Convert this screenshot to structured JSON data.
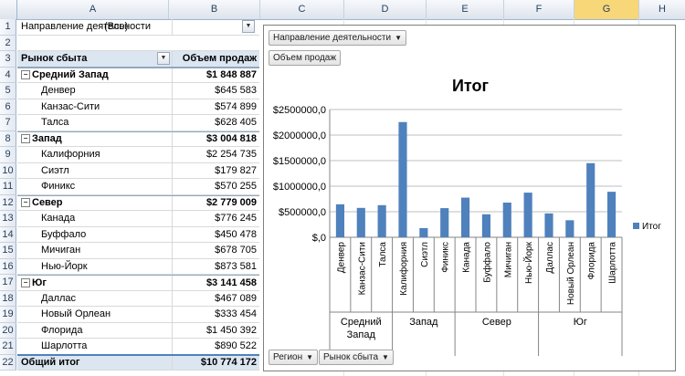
{
  "columns": [
    "A",
    "B",
    "C",
    "D",
    "E",
    "F",
    "G",
    "H"
  ],
  "selected_column": "G",
  "rows": [
    "1",
    "2",
    "3",
    "4",
    "5",
    "6",
    "7",
    "8",
    "9",
    "10",
    "11",
    "12",
    "13",
    "14",
    "15",
    "16",
    "17",
    "18",
    "19",
    "20",
    "21",
    "22"
  ],
  "filter": {
    "label": "Направление деятельности",
    "value": "(Все)"
  },
  "pivot_header": {
    "rows_label": "Рынок сбыта",
    "values_label": "Объем продаж"
  },
  "pivot_rows": [
    {
      "label": "Средний Запад",
      "value": "$1 848 887",
      "level": 1
    },
    {
      "label": "Денвер",
      "value": "$645 583",
      "level": 2
    },
    {
      "label": "Канзас-Сити",
      "value": "$574 899",
      "level": 2
    },
    {
      "label": "Талса",
      "value": "$628 405",
      "level": 2
    },
    {
      "label": "Запад",
      "value": "$3 004 818",
      "level": 1
    },
    {
      "label": "Калифорния",
      "value": "$2 254 735",
      "level": 2
    },
    {
      "label": "Сиэтл",
      "value": "$179 827",
      "level": 2
    },
    {
      "label": "Финикс",
      "value": "$570 255",
      "level": 2
    },
    {
      "label": "Север",
      "value": "$2 779 009",
      "level": 1
    },
    {
      "label": "Канада",
      "value": "$776 245",
      "level": 2
    },
    {
      "label": "Буффало",
      "value": "$450 478",
      "level": 2
    },
    {
      "label": "Мичиган",
      "value": "$678 705",
      "level": 2
    },
    {
      "label": "Нью-Йорк",
      "value": "$873 581",
      "level": 2
    },
    {
      "label": "Юг",
      "value": "$3 141 458",
      "level": 1
    },
    {
      "label": "Даллас",
      "value": "$467 089",
      "level": 2
    },
    {
      "label": "Новый Орлеан",
      "value": "$333 454",
      "level": 2
    },
    {
      "label": "Флорида",
      "value": "$1 450 392",
      "level": 2
    },
    {
      "label": "Шарлотта",
      "value": "$890 522",
      "level": 2
    }
  ],
  "grand_total": {
    "label": "Общий итог",
    "value": "$10 774 172"
  },
  "chart_buttons": {
    "filter_field": "Направление деятельности",
    "value_field": "Объем продаж",
    "axis_field_1": "Регион",
    "axis_field_2": "Рынок сбыта"
  },
  "colors": {
    "bar": "#4f81bd",
    "header_fill": "#dce6f1",
    "selected_col": "#f8d779"
  },
  "chart_data": {
    "type": "bar",
    "title": "Итог",
    "categories": [
      "Денвер",
      "Канзас-Сити",
      "Талса",
      "Калифорния",
      "Сиэтл",
      "Финикс",
      "Канада",
      "Буффало",
      "Мичиган",
      "Нью-Йорк",
      "Даллас",
      "Новый Орлеан",
      "Флорида",
      "Шарлотта"
    ],
    "groups": [
      {
        "name": "Средний Запад",
        "count": 3
      },
      {
        "name": "Запад",
        "count": 3
      },
      {
        "name": "Север",
        "count": 4
      },
      {
        "name": "Юг",
        "count": 4
      }
    ],
    "series": [
      {
        "name": "Итог",
        "values": [
          645583,
          574899,
          628405,
          2254735,
          179827,
          570255,
          776245,
          450478,
          678705,
          873581,
          467089,
          333454,
          1450392,
          890522
        ]
      }
    ],
    "ylim": [
      0,
      2500000
    ],
    "yticks": [
      0,
      500000,
      1000000,
      1500000,
      2000000,
      2500000
    ],
    "ytick_labels": [
      "$,0",
      "$500000,0",
      "$1000000,0",
      "$1500000,0",
      "$2000000,0",
      "$2500000,0"
    ],
    "grid": true,
    "legend": "right"
  }
}
